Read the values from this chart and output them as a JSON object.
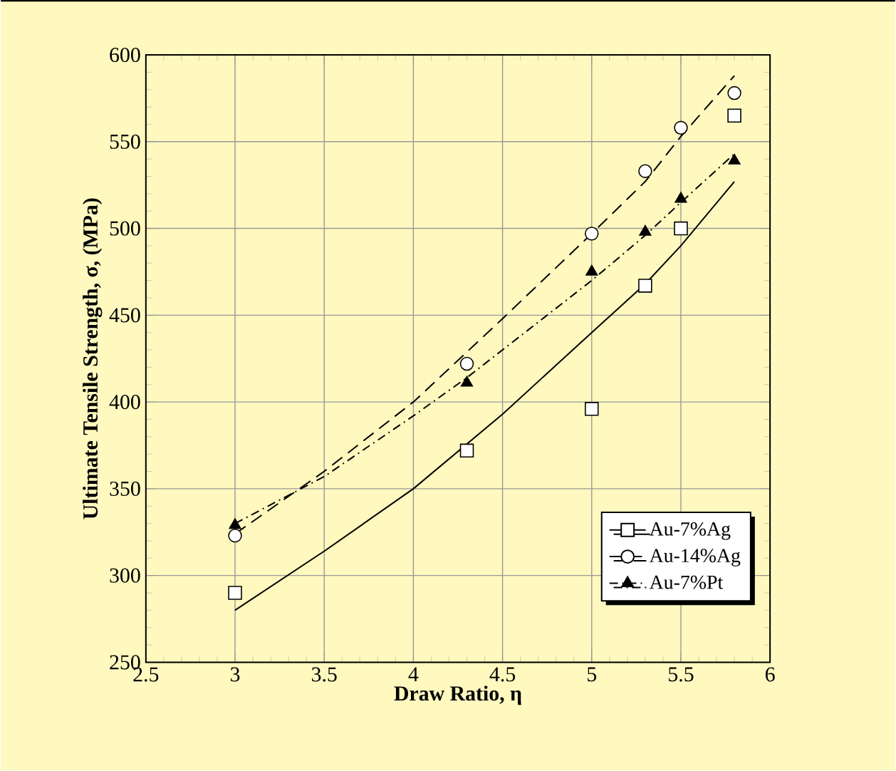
{
  "chart_data": {
    "type": "scatter",
    "xlabel": "Draw Ratio, η",
    "ylabel": "Ultimate Tensile Strength, σ, (MPa)",
    "xlim": [
      2.5,
      6
    ],
    "xticks": [
      2.5,
      3,
      3.5,
      4,
      4.5,
      5,
      5.5,
      6
    ],
    "ylim": [
      250,
      600
    ],
    "yticks": [
      250,
      300,
      350,
      400,
      450,
      500,
      550,
      600
    ],
    "grid": true,
    "legend": "bottom right",
    "series": [
      {
        "name": "Au-7%Ag",
        "color": "#000000",
        "marker": "square",
        "x": [
          3,
          4.3,
          5,
          5.3,
          5.5,
          5.8
        ],
        "values": [
          290,
          372,
          396,
          467,
          500,
          565
        ]
      },
      {
        "name": "Au-14%Ag",
        "color": "#000000",
        "marker": "circle",
        "x": [
          3,
          4.3,
          5,
          5.3,
          5.5,
          5.8
        ],
        "values": [
          323,
          422,
          497,
          533,
          558,
          578
        ]
      },
      {
        "name": "Au-7%Pt",
        "color": "#000000",
        "marker": "triangle",
        "x": [
          3,
          4.3,
          5,
          5.3,
          5.5,
          5.8
        ],
        "values": [
          329,
          411,
          475,
          498,
          517,
          539
        ]
      },
      {
        "type": "line",
        "color": "#000000",
        "line_style": "solid",
        "x": [
          3,
          3.5,
          4,
          4.5,
          5,
          5.3,
          5.5,
          5.8
        ],
        "values": [
          280,
          314,
          350,
          393,
          440,
          468,
          490,
          527
        ]
      },
      {
        "type": "line",
        "color": "#000000",
        "line_style": "dashed",
        "x": [
          3,
          3.5,
          4,
          4.5,
          5,
          5.3,
          5.5,
          5.8
        ],
        "values": [
          324,
          360,
          400,
          448,
          497,
          527,
          553,
          588
        ]
      },
      {
        "type": "line",
        "color": "#000000",
        "line_style": "dashdotted",
        "x": [
          3,
          3.5,
          4,
          4.3,
          5,
          5.3,
          5.5,
          5.8
        ],
        "values": [
          330,
          357,
          392,
          414,
          470,
          496,
          515,
          543
        ]
      }
    ]
  }
}
